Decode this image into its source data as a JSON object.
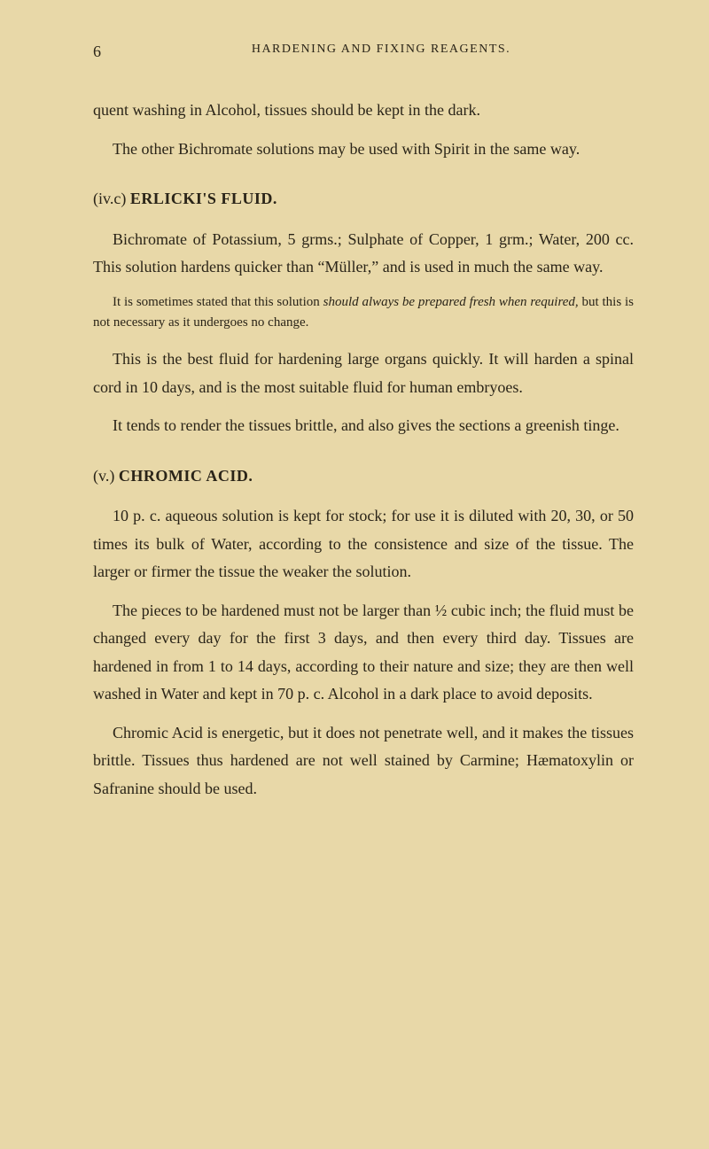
{
  "page_number": "6",
  "header": "HARDENING AND FIXING REAGENTS.",
  "para1": "quent washing in Alcohol, tissues should be kept in the dark.",
  "para2": "The other Bichromate solutions may be used with Spirit in the same way.",
  "section1": {
    "prefix": "(iv.c) ",
    "title": "ERLICKI'S FLUID."
  },
  "para3": "Bichromate of Potassium, 5 grms.; Sulphate of Copper, 1 grm.; Water, 200 cc. This solution hardens quicker than “Müller,” and is used in much the same way.",
  "note1_part1": "It is sometimes stated that this solution ",
  "note1_italic1": "should always be prepared fresh when required,",
  "note1_part2": " but this is not necessary as it undergoes no change.",
  "para4": "This is the best fluid for hardening large organs quickly. It will harden a spinal cord in 10 days, and is the most suitable fluid for human embryoes.",
  "para5": "It tends to render the tissues brittle, and also gives the sections a greenish tinge.",
  "section2": {
    "prefix": "(v.) ",
    "title": "CHROMIC ACID."
  },
  "para6": "10 p. c. aqueous solution is kept for stock; for use it is diluted with 20, 30, or 50 times its bulk of Water, according to the consistence and size of the tissue. The larger or firmer the tissue the weaker the solution.",
  "para7": "The pieces to be hardened must not be larger than ½ cubic inch; the fluid must be changed every day for the first 3 days, and then every third day. Tissues are hardened in from 1 to 14 days, according to their nature and size; they are then well washed in Water and kept in 70 p. c. Alcohol in a dark place to avoid deposits.",
  "para8": "Chromic Acid is energetic, but it does not penetrate well, and it makes the tissues brittle. Tissues thus hardened are not well stained by Carmine; Hæmatoxylin or Safranine should be used."
}
